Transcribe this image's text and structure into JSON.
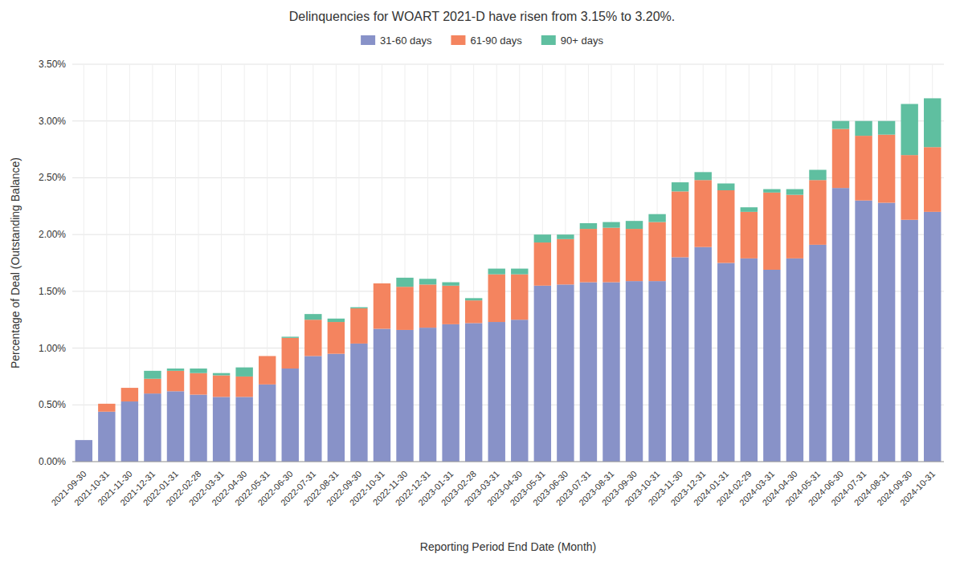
{
  "chart_data": {
    "type": "bar",
    "stacked": true,
    "title": "Delinquencies for WOART 2021-D have risen from 3.15% to 3.20%.",
    "x_label": "Reporting Period End Date (Month)",
    "y_label": "Percentage of Deal (Outstanding Balance)",
    "categories": [
      "2021-09-30",
      "2021-10-31",
      "2021-11-30",
      "2021-12-31",
      "2022-01-31",
      "2022-02-28",
      "2022-03-31",
      "2022-04-30",
      "2022-05-31",
      "2022-06-30",
      "2022-07-31",
      "2022-08-31",
      "2022-09-30",
      "2022-10-31",
      "2022-11-30",
      "2022-12-31",
      "2023-01-31",
      "2023-02-28",
      "2023-03-31",
      "2023-04-30",
      "2023-05-31",
      "2023-06-30",
      "2023-07-31",
      "2023-08-31",
      "2023-09-30",
      "2023-10-31",
      "2023-11-30",
      "2023-12-31",
      "2024-01-31",
      "2024-02-29",
      "2024-03-31",
      "2024-04-30",
      "2024-05-31",
      "2024-06-30",
      "2024-07-31",
      "2024-08-31",
      "2024-09-30",
      "2024-10-31"
    ],
    "series": [
      {
        "name": "31-60 days",
        "color": "#8892C8",
        "values": [
          0.0019,
          0.0044,
          0.0053,
          0.006,
          0.0062,
          0.0059,
          0.0057,
          0.0057,
          0.0068,
          0.0082,
          0.0093,
          0.0095,
          0.0104,
          0.0117,
          0.0116,
          0.0118,
          0.0121,
          0.0122,
          0.0123,
          0.0125,
          0.0155,
          0.0156,
          0.0158,
          0.0158,
          0.0159,
          0.0159,
          0.018,
          0.0189,
          0.0175,
          0.0179,
          0.0169,
          0.0179,
          0.0191,
          0.0241,
          0.023,
          0.0228,
          0.0213,
          0.022
        ]
      },
      {
        "name": "61-90 days",
        "color": "#F4845F",
        "values": [
          0.0,
          0.0007,
          0.0012,
          0.0013,
          0.0018,
          0.0019,
          0.0019,
          0.0018,
          0.0025,
          0.0027,
          0.0032,
          0.0028,
          0.0031,
          0.004,
          0.0038,
          0.0038,
          0.0034,
          0.002,
          0.0042,
          0.004,
          0.0038,
          0.004,
          0.0047,
          0.0048,
          0.0046,
          0.0052,
          0.0058,
          0.0059,
          0.0064,
          0.0041,
          0.0068,
          0.0056,
          0.0057,
          0.0052,
          0.0057,
          0.006,
          0.0057,
          0.0057
        ]
      },
      {
        "name": "90+ days",
        "color": "#5FBFA0",
        "values": [
          0.0,
          0.0,
          0.0,
          0.0007,
          0.0002,
          0.0004,
          0.0002,
          0.0008,
          0.0,
          0.0001,
          0.0005,
          0.0003,
          0.0001,
          0.0,
          0.0008,
          0.0005,
          0.0003,
          0.0002,
          0.0005,
          0.0005,
          0.0007,
          0.0004,
          0.0005,
          0.0005,
          0.0007,
          0.0007,
          0.0008,
          0.0007,
          0.0006,
          0.0004,
          0.0003,
          0.0005,
          0.0009,
          0.0007,
          0.0013,
          0.0012,
          0.0045,
          0.0043
        ]
      }
    ],
    "ylim": [
      0.0,
      0.035
    ],
    "yticks": [
      {
        "value": 0.0,
        "label": "0.00%"
      },
      {
        "value": 0.005,
        "label": "0.50%"
      },
      {
        "value": 0.01,
        "label": "1.00%"
      },
      {
        "value": 0.015,
        "label": "1.50%"
      },
      {
        "value": 0.02,
        "label": "2.00%"
      },
      {
        "value": 0.025,
        "label": "2.50%"
      },
      {
        "value": 0.03,
        "label": "3.00%"
      },
      {
        "value": 0.035,
        "label": "3.50%"
      }
    ],
    "grid": true,
    "legend": "top"
  }
}
